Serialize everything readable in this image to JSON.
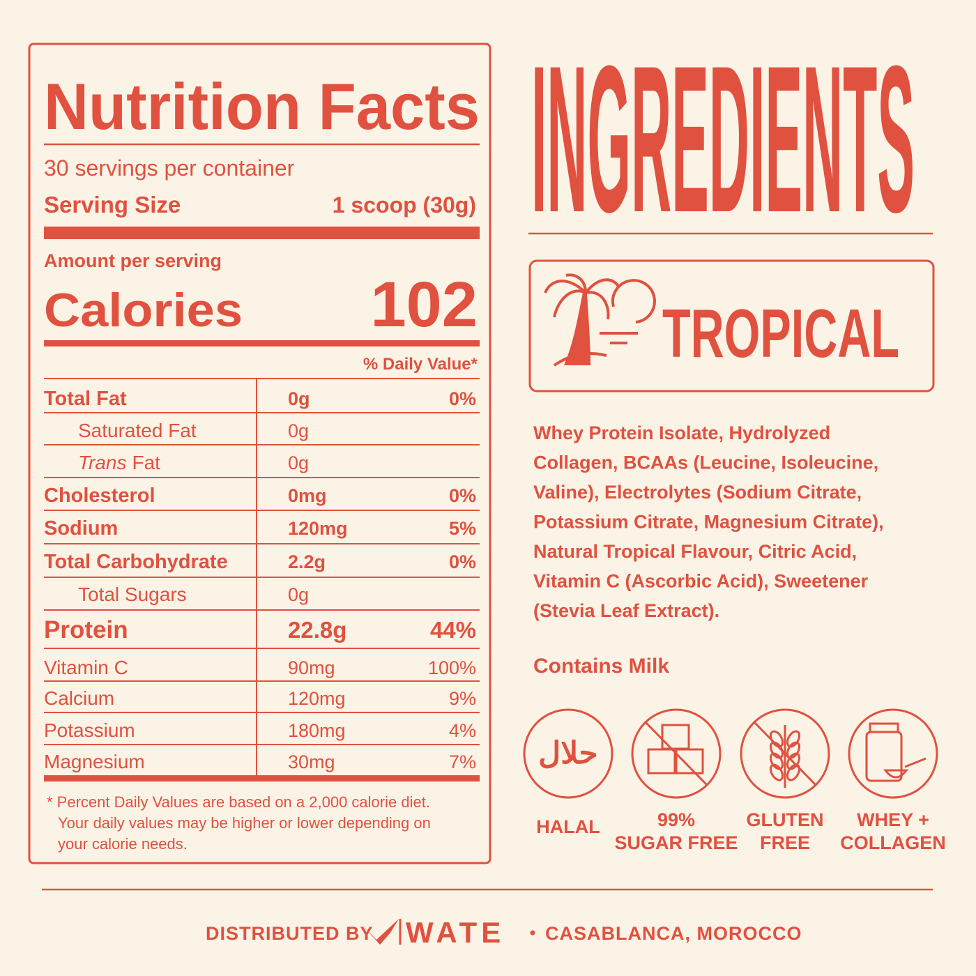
{
  "nutrition": {
    "title": "Nutrition Facts",
    "servings": "30 servings per container",
    "serving_size_label": "Serving Size",
    "serving_size": "1 scoop (30g)",
    "amount_label": "Amount per serving",
    "calories_label": "Calories",
    "calories": 102,
    "dv_header": "% Daily Value*",
    "rows": [
      {
        "nutrient": "Total Fat",
        "amount": "0g",
        "dv": "0%"
      },
      {
        "nutrient": "Saturated Fat",
        "amount": "0g"
      },
      {
        "nutrient_italic": "Trans",
        "nutrient": "Fat",
        "amount": "0g"
      },
      {
        "nutrient": "Cholesterol",
        "amount": "0mg",
        "dv": "0%"
      },
      {
        "nutrient": "Sodium",
        "amount": "120mg",
        "dv": "5%"
      },
      {
        "nutrient": "Total Carbohydrate",
        "amount": "2.2g",
        "dv": "0%"
      },
      {
        "nutrient": "Total Sugars",
        "amount": "0g"
      },
      {
        "nutrient": "Protein",
        "amount": "22.8g",
        "dv": "44%"
      },
      {
        "nutrient": "Vitamin C",
        "amount": "90mg",
        "dv": "100%"
      },
      {
        "nutrient": "Calcium",
        "amount": "120mg",
        "dv": "9%"
      },
      {
        "nutrient": "Potassium",
        "amount": "180mg",
        "dv": "4%"
      },
      {
        "nutrient": "Magnesium",
        "amount": "30mg",
        "dv": "7%"
      }
    ],
    "footnote": [
      "* Percent Daily Values are based on a 2,000 calorie diet.",
      "Your daily values may be higher or lower depending on",
      "your calorie needs."
    ]
  },
  "ingredients": {
    "title": "INGREDIENTS",
    "flavor": "TROPICAL",
    "lines": [
      "Whey Protein Isolate, Hydrolyzed",
      "Collagen, BCAAs (Leucine, Isoleucine,",
      "Valine), Electrolytes (Sodium Citrate,",
      "Potassium Citrate, Magnesium Citrate),",
      "Natural Tropical Flavour, Citric Acid,",
      "Vitamin C (Ascorbic Acid), Sweetener",
      "(Stevia Leaf Extract)."
    ],
    "allergen": "Contains Milk",
    "badges": [
      {
        "icon_text": "حلال",
        "label": [
          "HALAL"
        ]
      },
      {
        "label": [
          "99%",
          "SUGAR FREE"
        ]
      },
      {
        "label": [
          "GLUTEN",
          "FREE"
        ]
      },
      {
        "label": [
          "WHEY +",
          "COLLAGEN"
        ]
      }
    ]
  },
  "footer": {
    "distributed_by": "DISTRIBUTED BY",
    "brand": "WATE",
    "location": "CASABLANCA, MOROCCO"
  }
}
